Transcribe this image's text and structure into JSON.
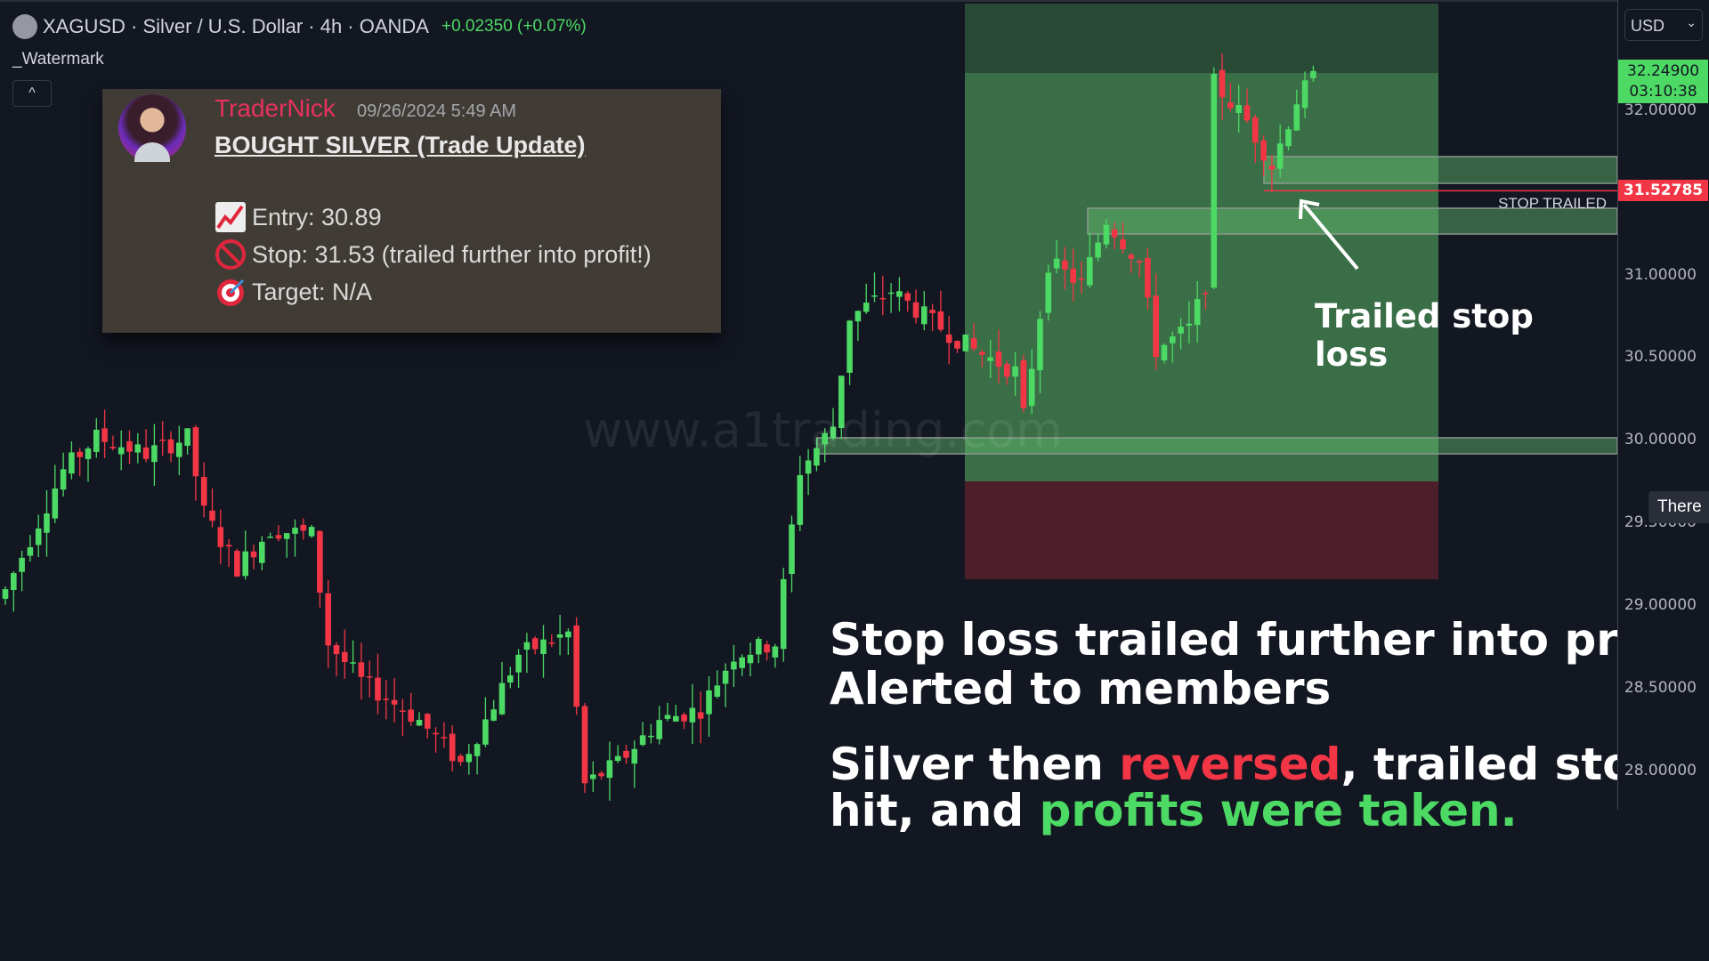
{
  "header": {
    "symbol": "XAGUSD · Silver / U.S. Dollar · 4h · OANDA",
    "change": "+0.02350 (+0.07%)",
    "indicator": "_Watermark",
    "collapse_icon": "^"
  },
  "axis": {
    "currency": "USD",
    "labels": [
      "32.00000",
      "31.00000",
      "30.50000",
      "30.00000",
      "29.50000",
      "29.00000",
      "28.50000",
      "28.00000"
    ],
    "last_price": "32.24900",
    "countdown": "03:10:38",
    "stop_price": "31.52785",
    "tooltip": "There"
  },
  "message": {
    "username": "TraderNick",
    "timestamp": "09/26/2024 5:49 AM",
    "title": "BOUGHT SILVER (Trade Update)",
    "entry": "Entry: 30.89",
    "stop": "Stop: 31.53 (trailed further into profit!)",
    "target": "Target: N/A",
    "icons": [
      "chart-increasing-icon",
      "no-entry-icon",
      "target-icon"
    ]
  },
  "annotations": {
    "watermark": "www.a1trading.com",
    "stop_label": "STOP TRAILED",
    "arrow_label": "Trailed stop loss",
    "headline1": "Stop loss trailed further into profit!",
    "headline2": "Alerted to members",
    "body_a": "Silver then ",
    "body_red": "reversed",
    "body_b": ", trailed stop was",
    "body_c": "hit, and ",
    "body_green": "profits were taken."
  },
  "colors": {
    "up": "#4cd964",
    "down": "#f23645",
    "accent_red": "#f23645",
    "accent_green": "#4cd964",
    "username": "#e6315e"
  },
  "chart": {
    "price_keypoints": [
      [
        0,
        29.1
      ],
      [
        7,
        29.83
      ],
      [
        11,
        30.03
      ],
      [
        17,
        29.93
      ],
      [
        22,
        30.03
      ],
      [
        24,
        29.57
      ],
      [
        28,
        29.24
      ],
      [
        32,
        29.47
      ],
      [
        37,
        29.44
      ],
      [
        39,
        28.78
      ],
      [
        43,
        28.55
      ],
      [
        50,
        28.31
      ],
      [
        55,
        28.05
      ],
      [
        58,
        28.31
      ],
      [
        62,
        28.71
      ],
      [
        68,
        28.84
      ],
      [
        70,
        27.92
      ],
      [
        74,
        28.05
      ],
      [
        79,
        28.31
      ],
      [
        84,
        28.38
      ],
      [
        88,
        28.71
      ],
      [
        93,
        28.78
      ],
      [
        96,
        29.83
      ],
      [
        100,
        30.1
      ],
      [
        102,
        30.76
      ],
      [
        107,
        30.92
      ],
      [
        112,
        30.73
      ],
      [
        117,
        30.56
      ],
      [
        122,
        30.43
      ],
      [
        123,
        30.16
      ],
      [
        126,
        31.09
      ],
      [
        130,
        30.96
      ],
      [
        133,
        31.35
      ],
      [
        137,
        31.09
      ],
      [
        139,
        30.56
      ],
      [
        143,
        30.69
      ],
      [
        145,
        30.96
      ],
      [
        146,
        32.18
      ],
      [
        150,
        31.95
      ],
      [
        153,
        31.68
      ],
      [
        156,
        32.08
      ],
      [
        158,
        32.21
      ]
    ],
    "entry": 30.89,
    "stop": 31.52785,
    "last": 32.249
  }
}
